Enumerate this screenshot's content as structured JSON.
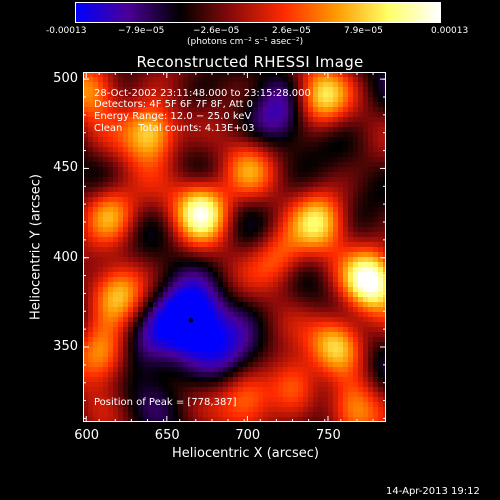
{
  "colorbar": {
    "tick_labels": [
      "-0.00013",
      "−7.9e−05",
      "−2.6e−05",
      "2.6e−05",
      "7.9e−05",
      "0.00013"
    ],
    "tick_values": [
      -0.00013,
      -7.9e-05,
      -2.6e-05,
      2.6e-05,
      7.9e-05,
      0.00013
    ],
    "units": "(photons cm⁻² s⁻¹ asec⁻²)",
    "colormap": [
      "#0000ff",
      "#4b0096",
      "#000000",
      "#8c0a0a",
      "#ff2a00",
      "#ff9900",
      "#ffff66",
      "#ffffff"
    ]
  },
  "chart_data": {
    "type": "heatmap",
    "title": "Reconstructed RHESSI Image",
    "xlabel": "Heliocentric X (arcsec)",
    "ylabel": "Heliocentric Y (arcsec)",
    "xlim": [
      598,
      786
    ],
    "ylim": [
      308,
      504
    ],
    "x_ticks": [
      600,
      650,
      700,
      750
    ],
    "y_ticks": [
      350,
      400,
      450,
      500
    ],
    "annotations": {
      "time": "28-Oct-2002 23:11:48.000 to 23:15:28.000",
      "detectors": "Detectors: 4F 5F 6F 7F 8F, Att 0",
      "energy": "Energy Range: 12.0 − 25.0 keV",
      "clean": "Clean     Total counts: 4.13E+03",
      "peak": "Position of Peak = [778,387]"
    },
    "features": [
      {
        "x": 640,
        "y": 470,
        "value": 0.8
      },
      {
        "x": 672,
        "y": 427,
        "value": 0.85
      },
      {
        "x": 745,
        "y": 490,
        "value": 0.6
      },
      {
        "x": 777,
        "y": 387,
        "value": 1.0
      },
      {
        "x": 745,
        "y": 420,
        "value": 0.55
      },
      {
        "x": 755,
        "y": 352,
        "value": 0.7
      },
      {
        "x": 610,
        "y": 345,
        "value": 0.65
      },
      {
        "x": 615,
        "y": 425,
        "value": 0.5
      },
      {
        "x": 620,
        "y": 380,
        "value": 0.45
      },
      {
        "x": 700,
        "y": 320,
        "value": 0.4
      },
      {
        "x": 730,
        "y": 330,
        "value": 0.5
      },
      {
        "x": 765,
        "y": 315,
        "value": 0.45
      },
      {
        "x": 720,
        "y": 400,
        "value": 0.35
      },
      {
        "x": 700,
        "y": 450,
        "value": 0.3
      },
      {
        "x": 605,
        "y": 495,
        "value": 0.45
      },
      {
        "x": 665,
        "y": 365,
        "value": -1.0
      },
      {
        "x": 640,
        "y": 350,
        "value": -0.5
      },
      {
        "x": 720,
        "y": 480,
        "value": -0.45
      },
      {
        "x": 690,
        "y": 345,
        "value": -0.4
      },
      {
        "x": 745,
        "y": 330,
        "value": -0.4
      }
    ]
  },
  "footer": {
    "timestamp": "14-Apr-2013 19:12"
  }
}
